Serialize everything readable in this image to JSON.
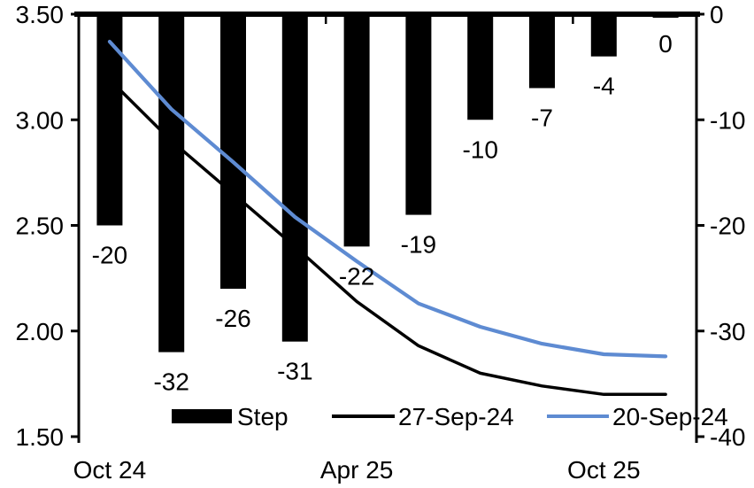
{
  "chart_data": {
    "type": "combo-bar-line",
    "title": "",
    "num_categories": 10,
    "x_axis": {
      "labels": [
        {
          "text": "Oct 24",
          "category_index": 0
        },
        {
          "text": "Apr 25",
          "category_index": 4
        },
        {
          "text": "Oct 25",
          "category_index": 8
        }
      ],
      "boundary_tick_indices": [
        4,
        8
      ]
    },
    "left_axis": {
      "min": 1.5,
      "max": 3.5,
      "ticks": [
        {
          "label": "3.50",
          "value": 3.5
        },
        {
          "label": "3.00",
          "value": 3.0
        },
        {
          "label": "2.50",
          "value": 2.5
        },
        {
          "label": "2.00",
          "value": 2.0
        },
        {
          "label": "1.50",
          "value": 1.5
        }
      ]
    },
    "right_axis": {
      "min": -40,
      "max": 0,
      "ticks": [
        {
          "label": "0",
          "value": 0
        },
        {
          "label": "-10",
          "value": -10
        },
        {
          "label": "-20",
          "value": -20
        },
        {
          "label": "-30",
          "value": -30
        },
        {
          "label": "-40",
          "value": -40
        }
      ]
    },
    "bar_series": {
      "name": "Step",
      "axis": "right",
      "color": "#000000",
      "values": [
        -20,
        -32,
        -26,
        -31,
        -22,
        -19,
        -10,
        -7,
        -4,
        0
      ],
      "labels": [
        "-20",
        "-32",
        "-26",
        "-31",
        "-22",
        "-19",
        "-10",
        "-7",
        "-4",
        "0"
      ]
    },
    "line_series": [
      {
        "name": "27-Sep-24",
        "axis": "left",
        "color": "#000000",
        "values": [
          3.19,
          2.9,
          2.65,
          2.4,
          2.14,
          1.93,
          1.8,
          1.74,
          1.7,
          1.7
        ]
      },
      {
        "name": "20-Sep-24",
        "axis": "left",
        "color": "#5e8bd2",
        "values": [
          3.37,
          3.05,
          2.8,
          2.54,
          2.33,
          2.13,
          2.02,
          1.94,
          1.89,
          1.88
        ]
      }
    ],
    "legend": [
      {
        "label": "Step",
        "type": "bar",
        "color": "#000000"
      },
      {
        "label": "27-Sep-24",
        "type": "line",
        "color": "#000000"
      },
      {
        "label": "20-Sep-24",
        "type": "line",
        "color": "#5e8bd2"
      }
    ],
    "grid": false,
    "legend_position": "bottom-inside"
  }
}
